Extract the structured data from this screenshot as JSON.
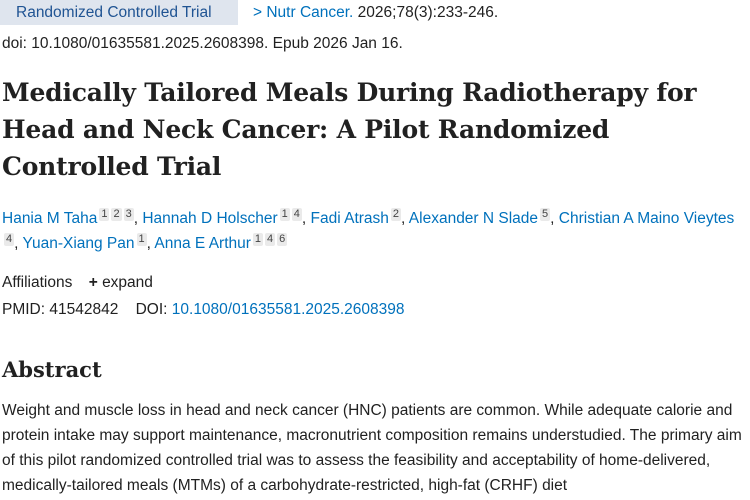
{
  "header": {
    "publication_type": "Randomized Controlled Trial",
    "journal": "Nutr Cancer.",
    "citation": " 2026;78(3):233-246.",
    "doi_line": "doi: 10.1080/01635581.2025.2608398. Epub 2026 Jan 16."
  },
  "title": "Medically Tailored Meals During Radiotherapy for Head and Neck Cancer: A Pilot Randomized Controlled Trial",
  "authors": [
    {
      "name": "Hania M Taha",
      "affs": [
        "1",
        "2",
        "3"
      ]
    },
    {
      "name": "Hannah D Holscher",
      "affs": [
        "1",
        "4"
      ]
    },
    {
      "name": "Fadi Atrash",
      "affs": [
        "2"
      ]
    },
    {
      "name": "Alexander N Slade",
      "affs": [
        "5"
      ]
    },
    {
      "name": "Christian A Maino Vieytes",
      "affs": [
        "4"
      ]
    },
    {
      "name": "Yuan-Xiang Pan",
      "affs": [
        "1"
      ]
    },
    {
      "name": "Anna E Arthur",
      "affs": [
        "1",
        "4",
        "6"
      ]
    }
  ],
  "affiliations": {
    "label": "Affiliations",
    "expand_icon": "plus-icon",
    "expand_label": "expand"
  },
  "ids": {
    "pmid_label": "PMID:",
    "pmid": "41542842",
    "doi_label": "DOI:",
    "doi": "10.1080/01635581.2025.2608398"
  },
  "abstract": {
    "heading": "Abstract",
    "text": "Weight and muscle loss in head and neck cancer (HNC) patients are common. While adequate calorie and protein intake may support maintenance, macronutrient composition remains understudied. The primary aim of this pilot randomized controlled trial was to assess the feasibility and acceptability of home-delivered, medically-tailored meals (MTMs) of a carbohydrate-restricted, high-fat (CRHF) diet"
  }
}
